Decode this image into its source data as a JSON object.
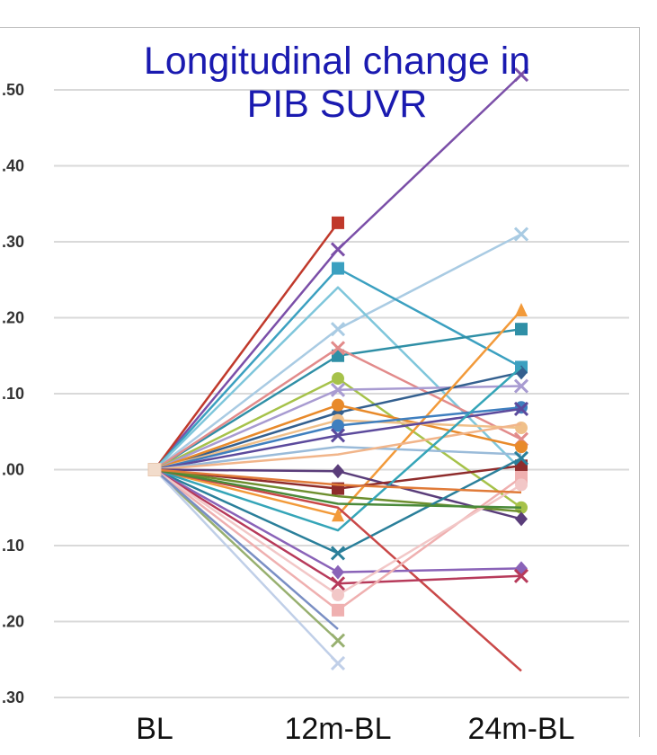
{
  "chart_data": {
    "type": "line",
    "title": "Longitudinal change in PIB SUVR",
    "title_lines": [
      "Longitudinal change in",
      "PIB SUVR"
    ],
    "x": [
      "BL",
      "12m-BL",
      "24m-BL"
    ],
    "y_tick_labels": [
      ".50",
      ".40",
      ".30",
      ".20",
      ".10",
      ".00",
      ".10",
      ".20",
      ".30"
    ],
    "y_tick_values": [
      0.5,
      0.4,
      0.3,
      0.2,
      0.1,
      0.0,
      -0.1,
      -0.2,
      -0.3
    ],
    "ylim": [
      -0.3,
      0.5
    ],
    "grid": true,
    "legend": "none",
    "series": [
      {
        "color": "#7b4fa8",
        "marker": "x",
        "values": [
          0,
          0.29,
          0.52
        ]
      },
      {
        "color": "#c0392b",
        "marker": "square",
        "values": [
          0,
          0.325,
          null
        ]
      },
      {
        "color": "#a9cbe3",
        "marker": "x",
        "values": [
          0,
          0.185,
          0.31
        ]
      },
      {
        "color": "#3ba0c0",
        "marker": "square",
        "values": [
          0,
          0.265,
          0.135
        ]
      },
      {
        "color": "#7ec6db",
        "marker": "none",
        "values": [
          0,
          0.24,
          0.0
        ]
      },
      {
        "color": "#2f8fa6",
        "marker": "square",
        "values": [
          0,
          0.15,
          0.185
        ]
      },
      {
        "color": "#e28b8b",
        "marker": "x",
        "values": [
          0,
          0.16,
          0.04
        ]
      },
      {
        "color": "#a6c24a",
        "marker": "circle",
        "values": [
          0,
          0.12,
          -0.05
        ]
      },
      {
        "color": "#a89bd1",
        "marker": "x",
        "values": [
          0,
          0.105,
          0.11
        ]
      },
      {
        "color": "#34608f",
        "marker": "diamond",
        "values": [
          0,
          0.075,
          0.128
        ]
      },
      {
        "color": "#e88a2b",
        "marker": "circle",
        "values": [
          0,
          0.085,
          0.03
        ]
      },
      {
        "color": "#f0c08a",
        "marker": "circle",
        "values": [
          0,
          0.065,
          0.055
        ]
      },
      {
        "color": "#f29a3a",
        "marker": "triangle",
        "values": [
          0,
          -0.06,
          0.21
        ]
      },
      {
        "color": "#3f7fbf",
        "marker": "circle",
        "values": [
          0,
          0.058,
          0.082
        ]
      },
      {
        "color": "#5c4a9c",
        "marker": "x",
        "values": [
          0,
          0.045,
          0.08
        ]
      },
      {
        "color": "#9abbd9",
        "marker": "none",
        "values": [
          0,
          0.03,
          0.02
        ]
      },
      {
        "color": "#f1b58a",
        "marker": "none",
        "values": [
          0,
          0.02,
          0.06
        ]
      },
      {
        "color": "#5a3d7a",
        "marker": "diamond",
        "values": [
          0,
          -0.002,
          -0.065
        ]
      },
      {
        "color": "#8e2c2c",
        "marker": "square",
        "values": [
          0,
          -0.025,
          0.005
        ]
      },
      {
        "color": "#6d8f2f",
        "marker": "none",
        "values": [
          0,
          -0.035,
          -0.055
        ]
      },
      {
        "color": "#2a7f9a",
        "marker": "x",
        "values": [
          0,
          -0.11,
          0.015
        ]
      },
      {
        "color": "#35a5b8",
        "marker": "none",
        "values": [
          0,
          -0.08,
          0.135
        ]
      },
      {
        "color": "#c94848",
        "marker": "none",
        "values": [
          0,
          -0.05,
          -0.265
        ]
      },
      {
        "color": "#8a63b8",
        "marker": "diamond",
        "values": [
          0,
          -0.135,
          -0.13
        ]
      },
      {
        "color": "#b73a5a",
        "marker": "x",
        "values": [
          0,
          -0.15,
          -0.14
        ]
      },
      {
        "color": "#efb0b0",
        "marker": "square",
        "values": [
          0,
          -0.185,
          -0.01
        ]
      },
      {
        "color": "#f2c7c7",
        "marker": "circle",
        "values": [
          0,
          -0.165,
          -0.02
        ]
      },
      {
        "color": "#98b070",
        "marker": "x",
        "values": [
          0,
          -0.225,
          null
        ]
      },
      {
        "color": "#c0cfe8",
        "marker": "x",
        "values": [
          0,
          -0.255,
          null
        ]
      },
      {
        "color": "#7a8fc4",
        "marker": "none",
        "values": [
          0,
          -0.21,
          null
        ]
      },
      {
        "color": "#4a8a3a",
        "marker": "none",
        "values": [
          0,
          -0.045,
          -0.05
        ]
      },
      {
        "color": "#e07b39",
        "marker": "none",
        "values": [
          0,
          -0.02,
          -0.03
        ]
      }
    ]
  }
}
